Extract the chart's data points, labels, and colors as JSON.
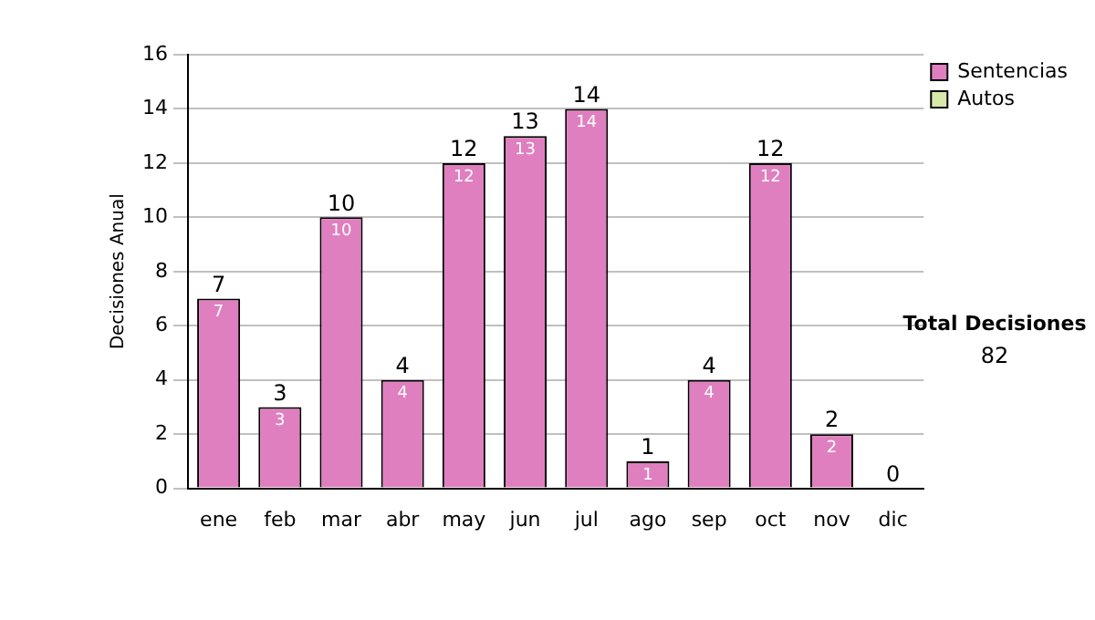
{
  "chart_data": {
    "type": "bar",
    "stacked": true,
    "ylabel": "Decisiones Anual",
    "categories": [
      "ene",
      "feb",
      "mar",
      "abr",
      "may",
      "jun",
      "jul",
      "ago",
      "sep",
      "oct",
      "nov",
      "dic"
    ],
    "series": [
      {
        "name": "Sentencias",
        "color": "#e07fbf",
        "values": [
          7,
          3,
          10,
          4,
          12,
          13,
          14,
          1,
          4,
          12,
          2,
          0
        ],
        "value_labels": [
          "7",
          "3",
          "10",
          "4",
          "12",
          "13",
          "14",
          "1",
          "4",
          "12",
          "2",
          null
        ]
      },
      {
        "name": "Autos",
        "color": "#d8e8a8",
        "values": [
          0,
          0,
          0,
          0,
          0,
          0,
          0,
          0,
          0,
          0,
          0,
          0
        ]
      }
    ],
    "totals": [
      "7",
      "3",
      "10",
      "4",
      "12",
      "13",
      "14",
      "1",
      "4",
      "12",
      "2",
      "0"
    ],
    "ylim": [
      0,
      16
    ],
    "yticks": [
      0,
      2,
      4,
      6,
      8,
      10,
      12,
      14,
      16
    ],
    "grid": "y",
    "legend": "right",
    "annotations": [
      "Total Decisiones",
      "82"
    ]
  }
}
